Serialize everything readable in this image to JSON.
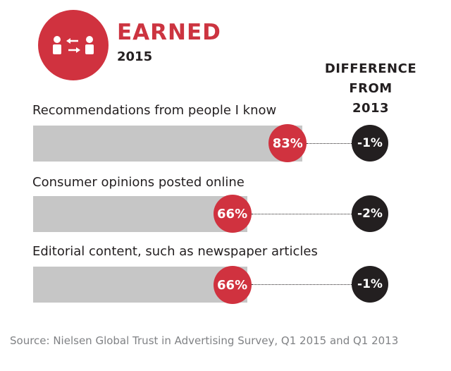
{
  "header": {
    "title": "EARNED",
    "year": "2015",
    "icon": "people-exchange-icon",
    "accent_color": "#d0323f"
  },
  "diff_header": {
    "line1": "DIFFERENCE",
    "line2": "FROM",
    "line3": "2013"
  },
  "source": "Source: Nielsen Global Trust in Advertising Survey, Q1 2015 and Q1 2013",
  "chart_data": {
    "type": "bar",
    "orientation": "horizontal",
    "categories": [
      "Recommendations from people I know",
      "Consumer opinions posted online",
      "Editorial content, such as newspaper articles"
    ],
    "series": [
      {
        "name": "2015",
        "values": [
          83,
          66,
          66
        ],
        "labels": [
          "83%",
          "66%",
          "66%"
        ]
      },
      {
        "name": "DIFFERENCE FROM 2013",
        "values": [
          -1,
          -2,
          -1
        ],
        "labels": [
          "-1%",
          "-2%",
          "-1%"
        ]
      }
    ],
    "xlim": [
      0,
      100
    ],
    "colors": {
      "bar_background": "#c6c6c6",
      "value_bubble": "#d0323f",
      "difference_bubble": "#231f20"
    }
  }
}
